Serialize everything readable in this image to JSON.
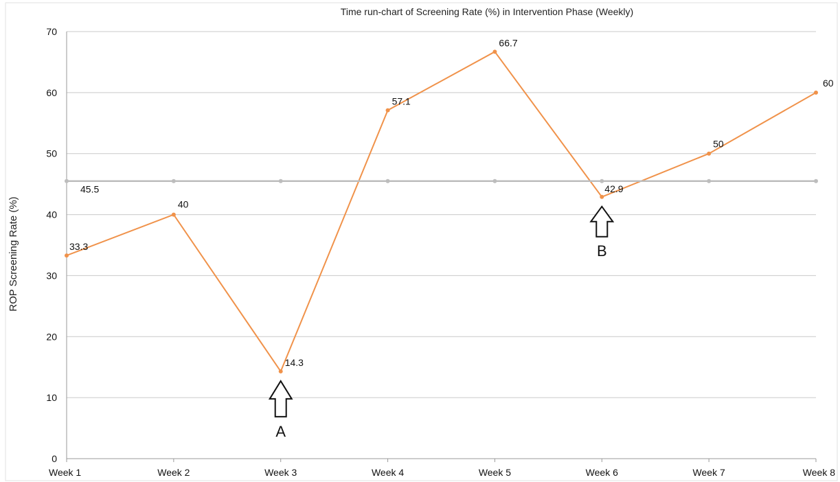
{
  "chart_data": {
    "type": "line",
    "title": "Time run-chart of Screening Rate (%) in Intervention Phase (Weekly)",
    "xlabel": "",
    "ylabel": "ROP Screening Rate (%)",
    "categories": [
      "Week 1",
      "Week 2",
      "Week 3",
      "Week 4",
      "Week 5",
      "Week 6",
      "Week 7",
      "Week 8"
    ],
    "ylim": [
      0,
      70
    ],
    "yticks": [
      0,
      10,
      20,
      30,
      40,
      50,
      60,
      70
    ],
    "grid": true,
    "series": [
      {
        "values": [
          33.3,
          40,
          14.3,
          57.1,
          66.7,
          42.9,
          50,
          60
        ],
        "labels": [
          "33.3",
          "40",
          "14.3",
          "57.1",
          "66.7",
          "42.9",
          "50",
          "60"
        ],
        "color": "#f0924a"
      },
      {
        "values": [
          45.5,
          45.5,
          45.5,
          45.5,
          45.5,
          45.5,
          45.5,
          45.5
        ],
        "labels": [
          "45.5"
        ],
        "color": "#bdbdbd"
      }
    ],
    "annotations": [
      {
        "text": "A",
        "category": "Week 3"
      },
      {
        "text": "B",
        "category": "Week 6"
      }
    ]
  }
}
